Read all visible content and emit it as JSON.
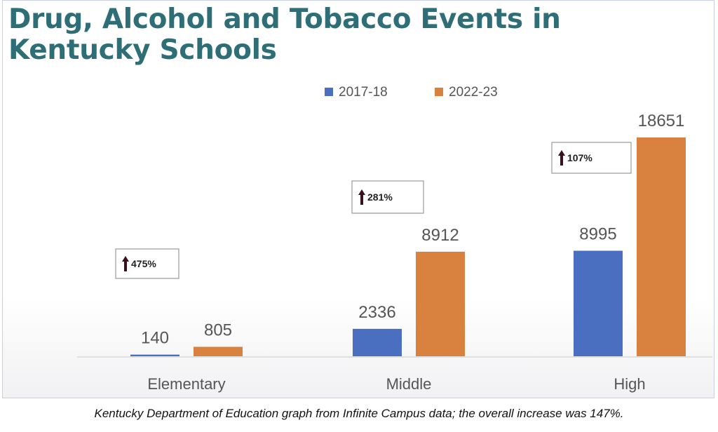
{
  "chart_data": {
    "type": "bar",
    "title": "Drug, Alcohol and Tobacco Events in Kentucky Schools",
    "categories": [
      "Elementary",
      "Middle",
      "High"
    ],
    "series": [
      {
        "name": "2017-18",
        "color": "#4a6fc1",
        "values": [
          140,
          2336,
          8995
        ]
      },
      {
        "name": "2022-23",
        "color": "#d9823f",
        "values": [
          805,
          8912,
          18651
        ]
      }
    ],
    "annotations": [
      "475%",
      "281%",
      "107%"
    ],
    "annotation_icon": "up-arrow-icon",
    "legend_position": "top",
    "grid": false,
    "ylim": [
      0,
      18651
    ]
  },
  "caption": "Kentucky Department of Education graph from Infinite Campus data; the overall increase was 147%."
}
